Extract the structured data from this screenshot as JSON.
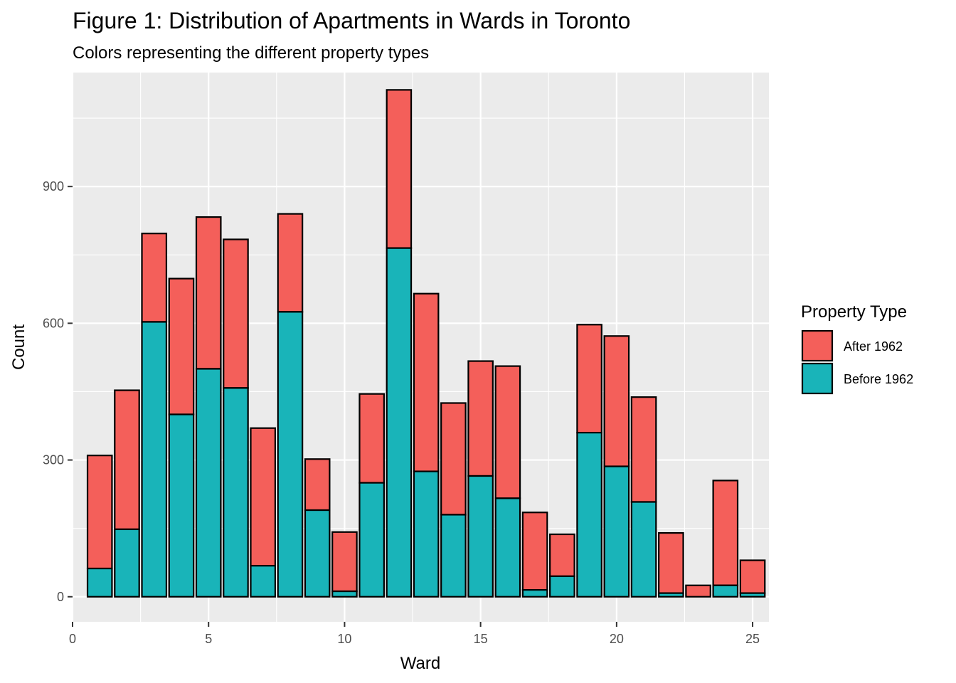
{
  "chart_data": {
    "type": "bar",
    "stacked": true,
    "title": "Figure 1: Distribution of Apartments in Wards in Toronto",
    "subtitle": "Colors representing the different property types",
    "xlabel": "Ward",
    "ylabel": "Count",
    "xlim": [
      0,
      25.6
    ],
    "ylim": [
      -55,
      1150
    ],
    "xticks": [
      0,
      5,
      10,
      15,
      20,
      25
    ],
    "yticks": [
      0,
      300,
      600,
      900
    ],
    "grid": true,
    "legend_position": "right",
    "legend_title": "Property Type",
    "categories": [
      1,
      2,
      3,
      4,
      5,
      6,
      7,
      8,
      9,
      10,
      11,
      12,
      13,
      14,
      15,
      16,
      17,
      18,
      19,
      20,
      21,
      22,
      23,
      24,
      25
    ],
    "series": [
      {
        "name": "Before 1962",
        "color": "#19B4B9",
        "values": [
          62,
          148,
          603,
          400,
          500,
          458,
          68,
          625,
          190,
          12,
          250,
          765,
          275,
          180,
          265,
          216,
          15,
          45,
          360,
          286,
          208,
          8,
          0,
          25,
          8
        ]
      },
      {
        "name": "After 1962",
        "color": "#F45F5A",
        "values": [
          248,
          305,
          194,
          298,
          333,
          326,
          302,
          215,
          112,
          130,
          195,
          347,
          390,
          245,
          252,
          290,
          170,
          92,
          237,
          286,
          230,
          132,
          25,
          230,
          72
        ]
      }
    ],
    "legend_order": [
      "After 1962",
      "Before 1962"
    ]
  }
}
